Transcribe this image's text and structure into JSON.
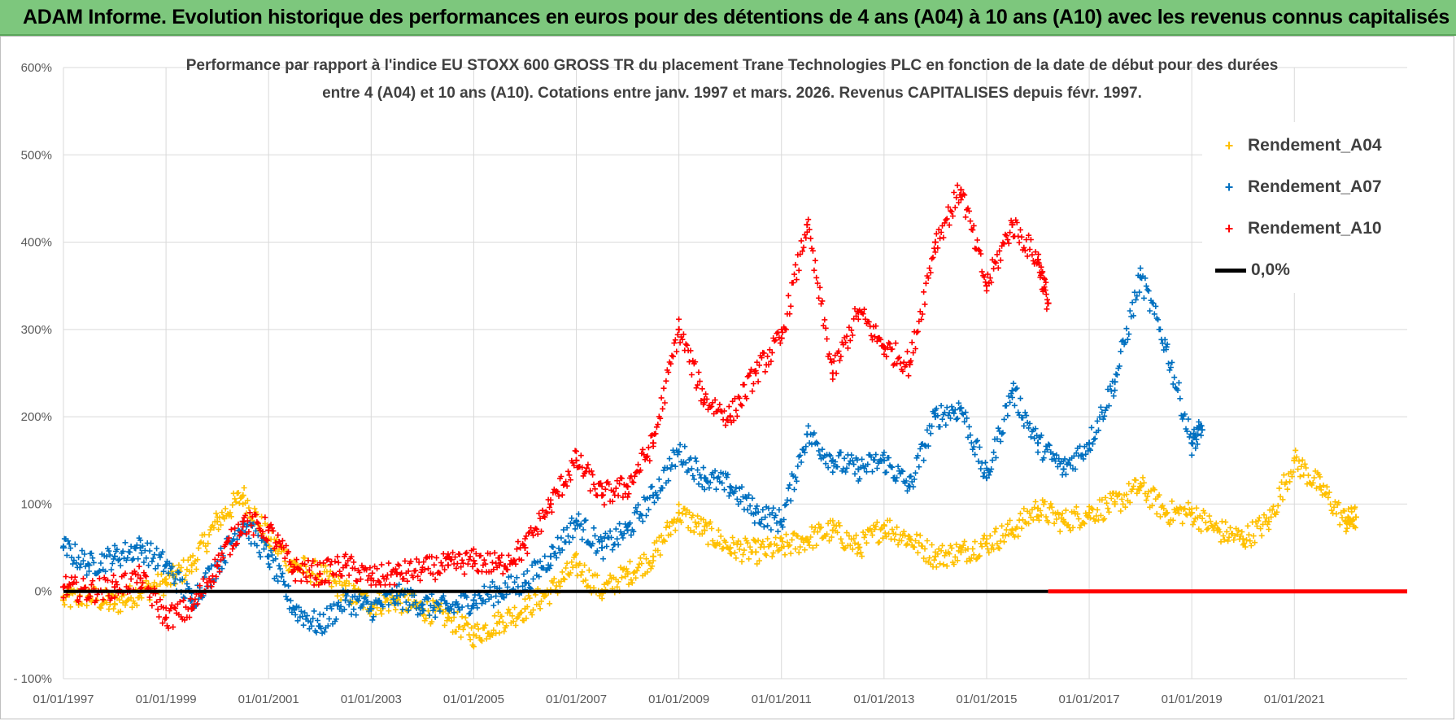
{
  "banner": {
    "title": "ADAM Informe. Evolution historique des performances en euros pour des détentions de 4 ans (A04) à 10 ans (A10) avec les revenus connus capitalisés"
  },
  "colors": {
    "banner": "#7dc77d",
    "a04": "#ffc000",
    "a07": "#0070c0",
    "a10": "#ff0000",
    "zero": "#000000",
    "grid": "#d9d9d9"
  },
  "chart_data": {
    "type": "scatter",
    "title_line1": "Performance par rapport à l'indice EU STOXX 600 GROSS TR  du placement Trane Technologies PLC en fonction de la date de début pour des durées",
    "title_line2": "entre 4 (A04) et 10 ans (A10).  Cotations entre janv. 1997 et mars. 2026. Revenus CAPITALISES  depuis févr. 1997.",
    "xlabel": "",
    "ylabel": "",
    "x_range": [
      1997.0,
      2023.2
    ],
    "ylim": [
      -100,
      600
    ],
    "y_ticks": [
      -100,
      0,
      100,
      200,
      300,
      400,
      500,
      600
    ],
    "y_tick_labels": [
      "- 100%",
      "0%",
      "100%",
      "200%",
      "300%",
      "400%",
      "500%",
      "600%"
    ],
    "x_tick_labels": [
      "01/01/1997",
      "01/01/1999",
      "01/01/2001",
      "01/01/2003",
      "01/01/2005",
      "01/01/2007",
      "01/01/2009",
      "01/01/2011",
      "01/01/2013",
      "01/01/2015",
      "01/01/2017",
      "01/01/2019",
      "01/01/2021"
    ],
    "grid": true,
    "legend_position": "top-right",
    "series": [
      {
        "name": "Rendement_A04",
        "marker": "+",
        "x": [
          1997.0,
          1997.5,
          1998.0,
          1998.5,
          1999.0,
          1999.5,
          2000.0,
          2000.5,
          2001.0,
          2001.5,
          2002.0,
          2002.5,
          2003.0,
          2003.5,
          2004.0,
          2004.5,
          2005.0,
          2005.5,
          2006.0,
          2006.5,
          2007.0,
          2007.5,
          2008.0,
          2008.5,
          2009.0,
          2009.5,
          2010.0,
          2010.5,
          2011.0,
          2011.5,
          2012.0,
          2012.5,
          2013.0,
          2013.5,
          2014.0,
          2014.5,
          2015.0,
          2015.5,
          2016.0,
          2016.5,
          2017.0,
          2017.5,
          2018.0,
          2018.5,
          2019.0,
          2019.5,
          2020.0,
          2020.5,
          2021.0,
          2021.5,
          2022.0,
          2022.2
        ],
        "y": [
          -10,
          -5,
          -15,
          0,
          10,
          30,
          80,
          110,
          60,
          30,
          20,
          0,
          -15,
          -10,
          -20,
          -30,
          -50,
          -35,
          -20,
          0,
          30,
          0,
          20,
          40,
          90,
          70,
          50,
          45,
          50,
          60,
          70,
          50,
          75,
          60,
          40,
          45,
          55,
          70,
          95,
          80,
          90,
          100,
          120,
          90,
          90,
          70,
          60,
          80,
          150,
          120,
          80,
          85
        ]
      },
      {
        "name": "Rendement_A07",
        "marker": "+",
        "x": [
          1997.0,
          1997.5,
          1998.0,
          1998.5,
          1999.0,
          1999.5,
          2000.0,
          2000.5,
          2001.0,
          2001.5,
          2002.0,
          2002.5,
          2003.0,
          2003.5,
          2004.0,
          2004.5,
          2005.0,
          2005.5,
          2006.0,
          2006.5,
          2007.0,
          2007.5,
          2008.0,
          2008.5,
          2009.0,
          2009.5,
          2010.0,
          2010.5,
          2011.0,
          2011.5,
          2012.0,
          2012.5,
          2013.0,
          2013.5,
          2014.0,
          2014.5,
          2015.0,
          2015.5,
          2016.0,
          2016.5,
          2017.0,
          2017.5,
          2018.0,
          2018.5,
          2019.0,
          2019.2
        ],
        "y": [
          50,
          30,
          40,
          50,
          30,
          -10,
          30,
          80,
          40,
          -20,
          -40,
          -10,
          -20,
          -5,
          -15,
          -20,
          -10,
          0,
          10,
          40,
          80,
          50,
          70,
          110,
          160,
          130,
          120,
          90,
          80,
          180,
          150,
          140,
          150,
          120,
          200,
          210,
          130,
          230,
          170,
          140,
          170,
          240,
          360,
          280,
          170,
          185
        ]
      },
      {
        "name": "Rendement_A10",
        "marker": "+",
        "x": [
          1997.0,
          1997.5,
          1998.0,
          1998.5,
          1999.0,
          1999.5,
          2000.0,
          2000.5,
          2001.0,
          2001.5,
          2002.0,
          2002.5,
          2003.0,
          2003.5,
          2004.0,
          2004.5,
          2005.0,
          2005.5,
          2006.0,
          2006.5,
          2007.0,
          2007.5,
          2008.0,
          2008.5,
          2009.0,
          2009.5,
          2010.0,
          2010.5,
          2011.0,
          2011.5,
          2012.0,
          2012.5,
          2013.0,
          2013.5,
          2014.0,
          2014.5,
          2015.0,
          2015.5,
          2016.0,
          2016.2
        ],
        "y": [
          5,
          0,
          5,
          15,
          -30,
          -20,
          30,
          80,
          70,
          25,
          20,
          30,
          15,
          20,
          25,
          30,
          35,
          30,
          50,
          100,
          150,
          110,
          120,
          170,
          300,
          220,
          200,
          250,
          290,
          420,
          250,
          320,
          280,
          260,
          400,
          460,
          350,
          420,
          380,
          330
        ]
      },
      {
        "name": "0,0%",
        "x": [
          1997.0,
          2023.2
        ],
        "y": [
          0,
          0
        ]
      }
    ]
  }
}
